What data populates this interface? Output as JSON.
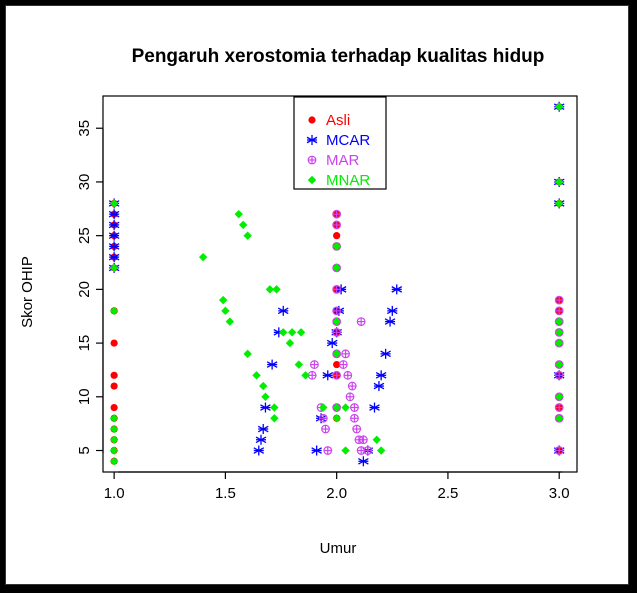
{
  "chart_data": {
    "type": "scatter",
    "title": "Pengaruh xerostomia terhadap kualitas hidup",
    "xlabel": "Umur",
    "ylabel": "Skor OHIP",
    "xlim": [
      0.95,
      3.08
    ],
    "ylim": [
      3,
      38
    ],
    "xticks": [
      1.0,
      1.5,
      2.0,
      2.5,
      3.0
    ],
    "xtick_labels": [
      "1.0",
      "1.5",
      "2.0",
      "2.5",
      "3.0"
    ],
    "yticks": [
      5,
      10,
      15,
      20,
      25,
      30,
      35
    ],
    "ytick_labels": [
      "5",
      "10",
      "15",
      "20",
      "25",
      "30",
      "35"
    ],
    "legend_position": "top-center",
    "series": [
      {
        "name": "Asli",
        "color": "#ff0000",
        "marker": "filled-circle",
        "points": [
          [
            1,
            4
          ],
          [
            1,
            5
          ],
          [
            1,
            6
          ],
          [
            1,
            7
          ],
          [
            1,
            8
          ],
          [
            1,
            9
          ],
          [
            1,
            11
          ],
          [
            1,
            12
          ],
          [
            1,
            15
          ],
          [
            1,
            18
          ],
          [
            1,
            22
          ],
          [
            1,
            23
          ],
          [
            1,
            24
          ],
          [
            1,
            25
          ],
          [
            1,
            26
          ],
          [
            1,
            27
          ],
          [
            1,
            28
          ],
          [
            2,
            8
          ],
          [
            2,
            9
          ],
          [
            2,
            12
          ],
          [
            2,
            13
          ],
          [
            2,
            14
          ],
          [
            2,
            16
          ],
          [
            2,
            17
          ],
          [
            2,
            18
          ],
          [
            2,
            20
          ],
          [
            2,
            22
          ],
          [
            2,
            24
          ],
          [
            2,
            25
          ],
          [
            2,
            26
          ],
          [
            2,
            27
          ],
          [
            3,
            5
          ],
          [
            3,
            8
          ],
          [
            3,
            9
          ],
          [
            3,
            10
          ],
          [
            3,
            12
          ],
          [
            3,
            13
          ],
          [
            3,
            15
          ],
          [
            3,
            16
          ],
          [
            3,
            17
          ],
          [
            3,
            18
          ],
          [
            3,
            19
          ],
          [
            3,
            28
          ],
          [
            3,
            30
          ],
          [
            3,
            37
          ]
        ]
      },
      {
        "name": "MCAR",
        "color": "#0000ff",
        "marker": "asterisk",
        "points": [
          [
            1,
            22
          ],
          [
            1,
            23
          ],
          [
            1,
            24
          ],
          [
            1,
            25
          ],
          [
            1,
            26
          ],
          [
            1,
            27
          ],
          [
            1,
            28
          ],
          [
            1.65,
            5
          ],
          [
            1.66,
            6
          ],
          [
            1.67,
            7
          ],
          [
            1.68,
            9
          ],
          [
            1.71,
            13
          ],
          [
            1.74,
            16
          ],
          [
            1.76,
            18
          ],
          [
            1.91,
            5
          ],
          [
            1.93,
            8
          ],
          [
            1.96,
            12
          ],
          [
            1.98,
            15
          ],
          [
            2,
            16
          ],
          [
            2.01,
            18
          ],
          [
            2.02,
            20
          ],
          [
            2.12,
            4
          ],
          [
            2.14,
            5
          ],
          [
            2.17,
            9
          ],
          [
            2.19,
            11
          ],
          [
            2.2,
            12
          ],
          [
            2.22,
            14
          ],
          [
            2.24,
            17
          ],
          [
            2.25,
            18
          ],
          [
            2.27,
            20
          ],
          [
            3,
            5
          ],
          [
            3,
            12
          ],
          [
            3,
            28
          ],
          [
            3,
            30
          ],
          [
            3,
            37
          ]
        ]
      },
      {
        "name": "MAR",
        "color": "#cc44ee",
        "marker": "crossed-circle",
        "points": [
          [
            1.89,
            12
          ],
          [
            1.9,
            13
          ],
          [
            1.93,
            9
          ],
          [
            1.94,
            8
          ],
          [
            1.95,
            7
          ],
          [
            1.96,
            5
          ],
          [
            2,
            9
          ],
          [
            2,
            12
          ],
          [
            2,
            14
          ],
          [
            2,
            16
          ],
          [
            2,
            17
          ],
          [
            2,
            18
          ],
          [
            2,
            20
          ],
          [
            2,
            22
          ],
          [
            2,
            24
          ],
          [
            2,
            26
          ],
          [
            2,
            27
          ],
          [
            2.03,
            13
          ],
          [
            2.04,
            14
          ],
          [
            2.05,
            12
          ],
          [
            2.06,
            10
          ],
          [
            2.07,
            11
          ],
          [
            2.08,
            9
          ],
          [
            2.08,
            8
          ],
          [
            2.09,
            7
          ],
          [
            2.1,
            6
          ],
          [
            2.11,
            5
          ],
          [
            2.11,
            17
          ],
          [
            2.12,
            6
          ],
          [
            2.14,
            5
          ],
          [
            3,
            5
          ],
          [
            3,
            8
          ],
          [
            3,
            9
          ],
          [
            3,
            10
          ],
          [
            3,
            12
          ],
          [
            3,
            13
          ],
          [
            3,
            15
          ],
          [
            3,
            16
          ],
          [
            3,
            17
          ],
          [
            3,
            18
          ],
          [
            3,
            19
          ]
        ]
      },
      {
        "name": "MNAR",
        "color": "#00ee00",
        "marker": "filled-diamond",
        "points": [
          [
            1,
            4
          ],
          [
            1,
            5
          ],
          [
            1,
            6
          ],
          [
            1,
            7
          ],
          [
            1,
            8
          ],
          [
            1,
            18
          ],
          [
            1,
            22
          ],
          [
            1,
            28
          ],
          [
            1.4,
            23
          ],
          [
            1.49,
            19
          ],
          [
            1.5,
            18
          ],
          [
            1.52,
            17
          ],
          [
            1.56,
            27
          ],
          [
            1.58,
            26
          ],
          [
            1.6,
            25
          ],
          [
            1.6,
            14
          ],
          [
            1.64,
            12
          ],
          [
            1.67,
            11
          ],
          [
            1.68,
            10
          ],
          [
            1.7,
            20
          ],
          [
            1.72,
            9
          ],
          [
            1.72,
            8
          ],
          [
            1.73,
            20
          ],
          [
            1.76,
            16
          ],
          [
            1.79,
            15
          ],
          [
            1.8,
            16
          ],
          [
            1.83,
            13
          ],
          [
            1.84,
            16
          ],
          [
            1.86,
            12
          ],
          [
            1.94,
            9
          ],
          [
            2,
            8
          ],
          [
            2,
            9
          ],
          [
            2,
            14
          ],
          [
            2,
            17
          ],
          [
            2,
            22
          ],
          [
            2,
            24
          ],
          [
            2.04,
            5
          ],
          [
            2.04,
            9
          ],
          [
            2.18,
            6
          ],
          [
            2.2,
            5
          ],
          [
            3,
            8
          ],
          [
            3,
            10
          ],
          [
            3,
            13
          ],
          [
            3,
            15
          ],
          [
            3,
            16
          ],
          [
            3,
            17
          ],
          [
            3,
            28
          ],
          [
            3,
            30
          ],
          [
            3,
            37
          ]
        ]
      }
    ]
  }
}
